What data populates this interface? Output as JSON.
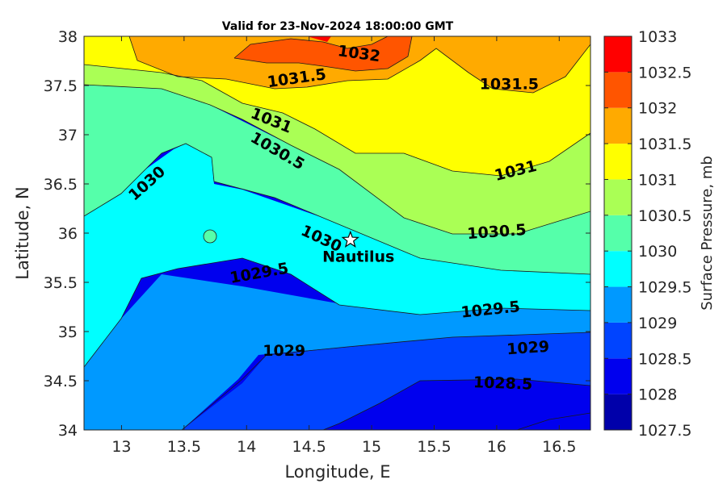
{
  "chart_data": {
    "type": "contour",
    "title": "Valid for 23-Nov-2024 18:00:00 GMT",
    "xlabel": "Longitude, E",
    "ylabel": "Latitude, N",
    "xlim": [
      12.7,
      16.75
    ],
    "ylim": [
      34,
      38
    ],
    "xticks": [
      "13",
      "13.5",
      "14",
      "14.5",
      "15",
      "15.5",
      "16",
      "16.5"
    ],
    "yticks": [
      "34",
      "34.5",
      "35",
      "35.5",
      "36",
      "36.5",
      "37",
      "37.5",
      "38"
    ],
    "colorbar": {
      "label": "Surface Pressure, mb",
      "levels": [
        "1027.5",
        "1028",
        "1028.5",
        "1029",
        "1029.5",
        "1030",
        "1030.5",
        "1031",
        "1031.5",
        "1032",
        "1032.5",
        "1033"
      ],
      "colors": [
        "#0000aa",
        "#0000ee",
        "#0044ff",
        "#0099ff",
        "#00ffff",
        "#55ffaa",
        "#aaff55",
        "#ffff00",
        "#ffaa00",
        "#ff5500",
        "#ff0000",
        "#aa0000"
      ]
    },
    "contour_labels": [
      {
        "text": "1032",
        "x": 14.9,
        "y": 37.83
      },
      {
        "text": "1031.5",
        "x": 14.4,
        "y": 37.58
      },
      {
        "text": "1031.5",
        "x": 16.1,
        "y": 37.52
      },
      {
        "text": "1031",
        "x": 14.2,
        "y": 37.15
      },
      {
        "text": "1031",
        "x": 16.15,
        "y": 36.64
      },
      {
        "text": "1030.5",
        "x": 14.25,
        "y": 36.84
      },
      {
        "text": "1030.5",
        "x": 16.0,
        "y": 36.02
      },
      {
        "text": "1030",
        "x": 13.2,
        "y": 36.51
      },
      {
        "text": "1030",
        "x": 14.6,
        "y": 35.95
      },
      {
        "text": "1029.5",
        "x": 14.1,
        "y": 35.6
      },
      {
        "text": "1029.5",
        "x": 15.95,
        "y": 35.23
      },
      {
        "text": "1029",
        "x": 14.3,
        "y": 34.81
      },
      {
        "text": "1029",
        "x": 16.25,
        "y": 34.84
      },
      {
        "text": "1028.5",
        "x": 16.05,
        "y": 34.48
      }
    ],
    "marker": {
      "name": "Nautilus",
      "x": 14.83,
      "y": 35.93
    }
  }
}
